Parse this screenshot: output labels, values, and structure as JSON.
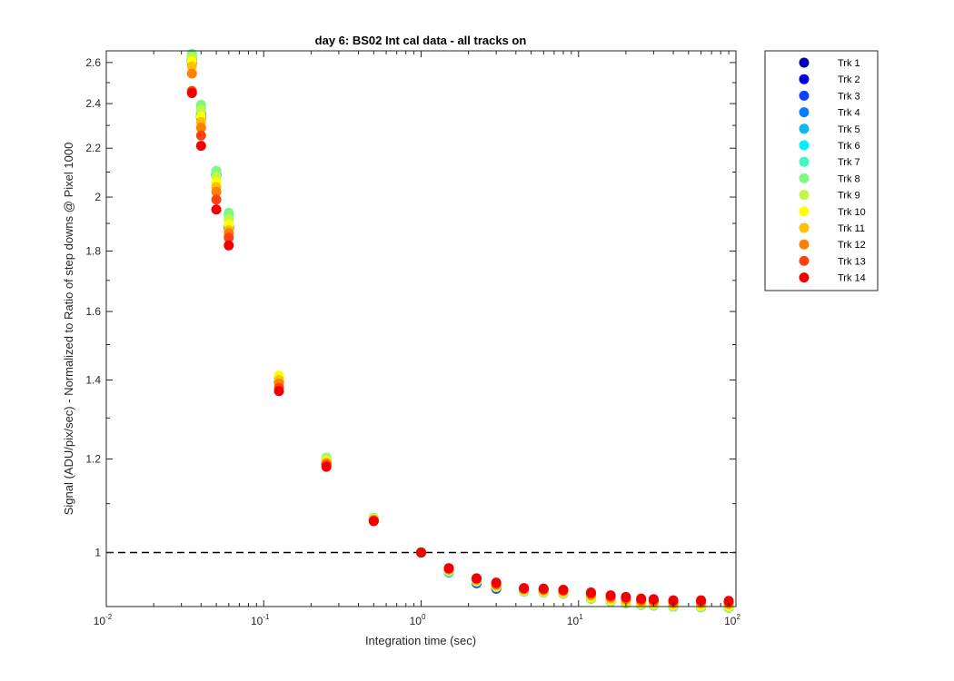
{
  "chart_data": {
    "type": "scatter",
    "title": "day 6: BS02   Int cal data - all tracks on",
    "xlabel": "Integration time (sec)",
    "ylabel": "Signal (ADU/pix/sec) - Normalized to Ratio of step downs @ Pixel 1000",
    "xscale": "log",
    "yscale": "log",
    "xlim": [
      0.01,
      100
    ],
    "ylim": [
      0.9,
      2.66
    ],
    "x_ticks": [
      {
        "base": "10",
        "exp": "-2"
      },
      {
        "base": "10",
        "exp": "-1"
      },
      {
        "base": "10",
        "exp": "0"
      },
      {
        "base": "10",
        "exp": "1"
      },
      {
        "base": "10",
        "exp": "2"
      }
    ],
    "y_ticks": [
      {
        "value": 1.0,
        "label": "1"
      },
      {
        "value": 1.2,
        "label": "1.2"
      },
      {
        "value": 1.4,
        "label": "1.4"
      },
      {
        "value": 1.6,
        "label": "1.6"
      },
      {
        "value": 1.8,
        "label": "1.8"
      },
      {
        "value": 2.0,
        "label": "2"
      },
      {
        "value": 2.2,
        "label": "2.2"
      },
      {
        "value": 2.4,
        "label": "2.4"
      },
      {
        "value": 2.6,
        "label": "2.6"
      }
    ],
    "reference_line": {
      "y": 1.0,
      "style": "dashed",
      "color": "#000000"
    },
    "grid": false,
    "legend_position": "outside-top-right",
    "x": [
      0.035,
      0.04,
      0.05,
      0.06,
      0.125,
      0.25,
      0.5,
      1.0,
      1.5,
      2.25,
      3.0,
      4.5,
      6.0,
      8.0,
      12.0,
      16.0,
      20.0,
      25.0,
      30.0,
      40.0,
      60.0,
      90.0
    ],
    "series": [
      {
        "name": "Trk 1",
        "color": "#0000ad",
        "values": [
          2.6,
          2.335,
          2.085,
          1.88,
          1.395,
          1.19,
          1.065,
          1.0,
          0.962,
          0.942,
          0.932,
          0.927,
          0.925,
          0.923,
          0.914,
          0.909,
          0.906,
          0.903,
          0.902,
          0.9,
          0.899,
          0.898
        ]
      },
      {
        "name": "Trk 2",
        "color": "#0000e0",
        "values": [
          2.605,
          2.34,
          2.088,
          1.882,
          1.397,
          1.191,
          1.066,
          1.0,
          0.962,
          0.943,
          0.933,
          0.927,
          0.925,
          0.923,
          0.914,
          0.909,
          0.906,
          0.903,
          0.902,
          0.9,
          0.899,
          0.898
        ]
      },
      {
        "name": "Trk 3",
        "color": "#1040ff",
        "values": [
          2.61,
          2.345,
          2.09,
          1.885,
          1.398,
          1.192,
          1.066,
          1.0,
          0.962,
          0.943,
          0.933,
          0.927,
          0.925,
          0.923,
          0.914,
          0.909,
          0.906,
          0.903,
          0.902,
          0.9,
          0.899,
          0.898
        ]
      },
      {
        "name": "Trk 4",
        "color": "#0080ff",
        "values": [
          2.615,
          2.35,
          2.092,
          1.888,
          1.4,
          1.193,
          1.067,
          1.0,
          0.962,
          0.944,
          0.934,
          0.927,
          0.925,
          0.923,
          0.914,
          0.909,
          0.906,
          0.903,
          0.902,
          0.9,
          0.899,
          0.898
        ]
      },
      {
        "name": "Trk 5",
        "color": "#10b8f0",
        "values": [
          2.62,
          2.355,
          2.095,
          1.89,
          1.402,
          1.195,
          1.068,
          1.0,
          0.962,
          0.944,
          0.935,
          0.927,
          0.925,
          0.923,
          0.914,
          0.909,
          0.906,
          0.903,
          0.902,
          0.9,
          0.899,
          0.898
        ]
      },
      {
        "name": "Trk 6",
        "color": "#00f0ff",
        "values": [
          2.63,
          2.365,
          2.098,
          1.895,
          1.404,
          1.197,
          1.069,
          1.0,
          0.963,
          0.945,
          0.935,
          0.927,
          0.925,
          0.923,
          0.914,
          0.909,
          0.906,
          0.903,
          0.902,
          0.9,
          0.899,
          0.898
        ]
      },
      {
        "name": "Trk 7",
        "color": "#40f8c0",
        "values": [
          2.635,
          2.38,
          2.1,
          1.932,
          1.405,
          1.199,
          1.069,
          1.0,
          0.963,
          0.945,
          0.935,
          0.927,
          0.925,
          0.923,
          0.914,
          0.909,
          0.906,
          0.903,
          0.902,
          0.9,
          0.899,
          0.898
        ]
      },
      {
        "name": "Trk 8",
        "color": "#80f880",
        "values": [
          2.645,
          2.395,
          2.105,
          1.94,
          1.407,
          1.203,
          1.07,
          1.0,
          0.964,
          0.946,
          0.935,
          0.927,
          0.925,
          0.923,
          0.914,
          0.909,
          0.906,
          0.903,
          0.902,
          0.9,
          0.899,
          0.898
        ]
      },
      {
        "name": "Trk 9",
        "color": "#c0f840",
        "values": [
          2.625,
          2.37,
          2.08,
          1.915,
          1.41,
          1.199,
          1.068,
          1.0,
          0.965,
          0.946,
          0.936,
          0.928,
          0.926,
          0.924,
          0.915,
          0.91,
          0.907,
          0.904,
          0.903,
          0.901,
          0.9,
          0.899
        ]
      },
      {
        "name": "Trk 10",
        "color": "#ffff00",
        "values": [
          2.605,
          2.34,
          2.06,
          1.895,
          1.412,
          1.195,
          1.067,
          1.0,
          0.966,
          0.947,
          0.937,
          0.929,
          0.927,
          0.925,
          0.917,
          0.912,
          0.909,
          0.906,
          0.905,
          0.903,
          0.902,
          0.901
        ]
      },
      {
        "name": "Trk 11",
        "color": "#ffc000",
        "values": [
          2.58,
          2.315,
          2.04,
          1.875,
          1.4,
          1.192,
          1.066,
          1.0,
          0.967,
          0.948,
          0.938,
          0.93,
          0.928,
          0.926,
          0.919,
          0.914,
          0.911,
          0.908,
          0.907,
          0.905,
          0.905,
          0.904
        ]
      },
      {
        "name": "Trk 12",
        "color": "#ff8000",
        "values": [
          2.545,
          2.29,
          2.02,
          1.865,
          1.39,
          1.189,
          1.065,
          1.0,
          0.968,
          0.949,
          0.939,
          0.931,
          0.93,
          0.928,
          0.921,
          0.916,
          0.913,
          0.91,
          0.909,
          0.907,
          0.907,
          0.906
        ]
      },
      {
        "name": "Trk 13",
        "color": "#ff4010",
        "values": [
          2.46,
          2.255,
          1.99,
          1.848,
          1.378,
          1.186,
          1.064,
          1.0,
          0.969,
          0.95,
          0.941,
          0.932,
          0.931,
          0.929,
          0.923,
          0.918,
          0.915,
          0.912,
          0.911,
          0.909,
          0.909,
          0.908
        ]
      },
      {
        "name": "Trk 14",
        "color": "#f00000",
        "values": [
          2.45,
          2.21,
          1.952,
          1.82,
          1.37,
          1.182,
          1.063,
          1.0,
          0.97,
          0.951,
          0.943,
          0.933,
          0.932,
          0.93,
          0.925,
          0.92,
          0.917,
          0.914,
          0.913,
          0.911,
          0.911,
          0.91
        ]
      }
    ]
  }
}
